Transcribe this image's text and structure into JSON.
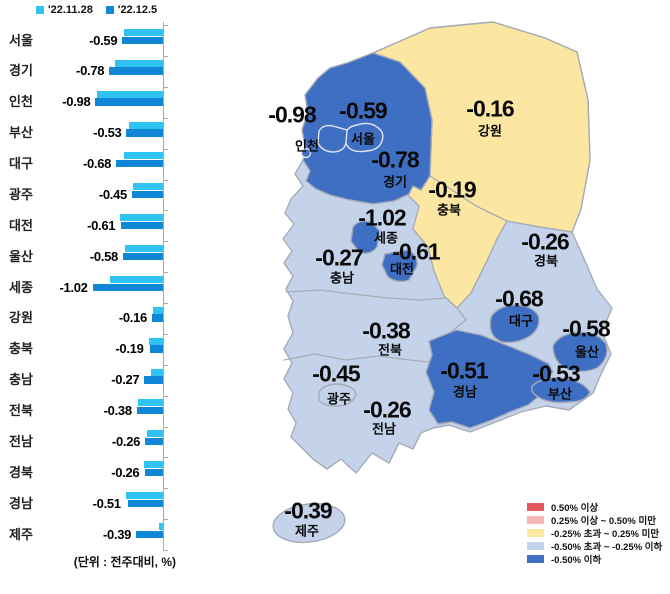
{
  "chart_data": {
    "type": "bar",
    "orientation": "horizontal",
    "title": "",
    "unit_note": "(단위 : 전주대비, %)",
    "categories": [
      "서울",
      "경기",
      "인천",
      "부산",
      "대구",
      "광주",
      "대전",
      "울산",
      "세종",
      "강원",
      "충북",
      "충남",
      "전북",
      "전남",
      "경북",
      "경남",
      "제주"
    ],
    "series": [
      {
        "name": "'22.11.28",
        "color": "#2fc3f2",
        "values": [
          -0.57,
          -0.7,
          -0.96,
          -0.5,
          -0.57,
          -0.44,
          -0.62,
          -0.55,
          -0.77,
          -0.14,
          -0.21,
          -0.17,
          -0.36,
          -0.23,
          -0.27,
          -0.54,
          -0.06
        ]
      },
      {
        "name": "'22.12.5",
        "color": "#0f86d6",
        "values": [
          -0.59,
          -0.78,
          -0.98,
          -0.53,
          -0.68,
          -0.45,
          -0.61,
          -0.58,
          -1.02,
          -0.16,
          -0.19,
          -0.27,
          -0.38,
          -0.26,
          -0.26,
          -0.51,
          -0.39
        ]
      }
    ],
    "value_label_series": "'22.12.5",
    "xlim": [
      -1.1,
      0
    ],
    "grid": false,
    "legend_position": "top"
  },
  "map": {
    "category_colors": {
      "up_strong": "#e2595c",
      "up_mild": "#f5b9ba",
      "flat": "#fbe7a2",
      "down_mild": "#c5d3ea",
      "down_strong": "#3f6fc3"
    },
    "regions": [
      {
        "key": "incheon",
        "name": "인천",
        "value": "-0.98",
        "category": "down_strong"
      },
      {
        "key": "seoul",
        "name": "서울",
        "value": "-0.59",
        "category": "down_strong"
      },
      {
        "key": "gangwon",
        "name": "강원",
        "value": "-0.16",
        "category": "flat"
      },
      {
        "key": "gyeonggi",
        "name": "경기",
        "value": "-0.78",
        "category": "down_strong"
      },
      {
        "key": "chungbuk",
        "name": "충북",
        "value": "-0.19",
        "category": "flat"
      },
      {
        "key": "sejong",
        "name": "세종",
        "value": "-1.02",
        "category": "down_strong"
      },
      {
        "key": "daejeon",
        "name": "대전",
        "value": "-0.61",
        "category": "down_strong"
      },
      {
        "key": "chungnam",
        "name": "충남",
        "value": "-0.27",
        "category": "down_mild"
      },
      {
        "key": "gyeongbuk",
        "name": "경북",
        "value": "-0.26",
        "category": "down_mild"
      },
      {
        "key": "daegu",
        "name": "대구",
        "value": "-0.68",
        "category": "down_strong"
      },
      {
        "key": "ulsan",
        "name": "울산",
        "value": "-0.58",
        "category": "down_strong"
      },
      {
        "key": "jeonbuk",
        "name": "전북",
        "value": "-0.38",
        "category": "down_mild"
      },
      {
        "key": "gwangju",
        "name": "광주",
        "value": "-0.45",
        "category": "down_mild"
      },
      {
        "key": "gyeongnam",
        "name": "경남",
        "value": "-0.51",
        "category": "down_strong"
      },
      {
        "key": "busan",
        "name": "부산",
        "value": "-0.53",
        "category": "down_strong"
      },
      {
        "key": "jeonnam",
        "name": "전남",
        "value": "-0.26",
        "category": "down_mild"
      },
      {
        "key": "jeju",
        "name": "제주",
        "value": "-0.39",
        "category": "down_mild"
      }
    ],
    "legend": [
      {
        "label": "0.50% 이상",
        "color": "#e2595c"
      },
      {
        "label": "0.25% 이상 ~ 0.50% 미만",
        "color": "#f5b9ba"
      },
      {
        "label": "-0.25% 초과 ~ 0.25% 미만",
        "color": "#fbe7a2"
      },
      {
        "label": "-0.50% 초과 ~ -0.25% 이하",
        "color": "#c5d3ea"
      },
      {
        "label": "-0.50% 이하",
        "color": "#3f6fc3"
      }
    ]
  }
}
